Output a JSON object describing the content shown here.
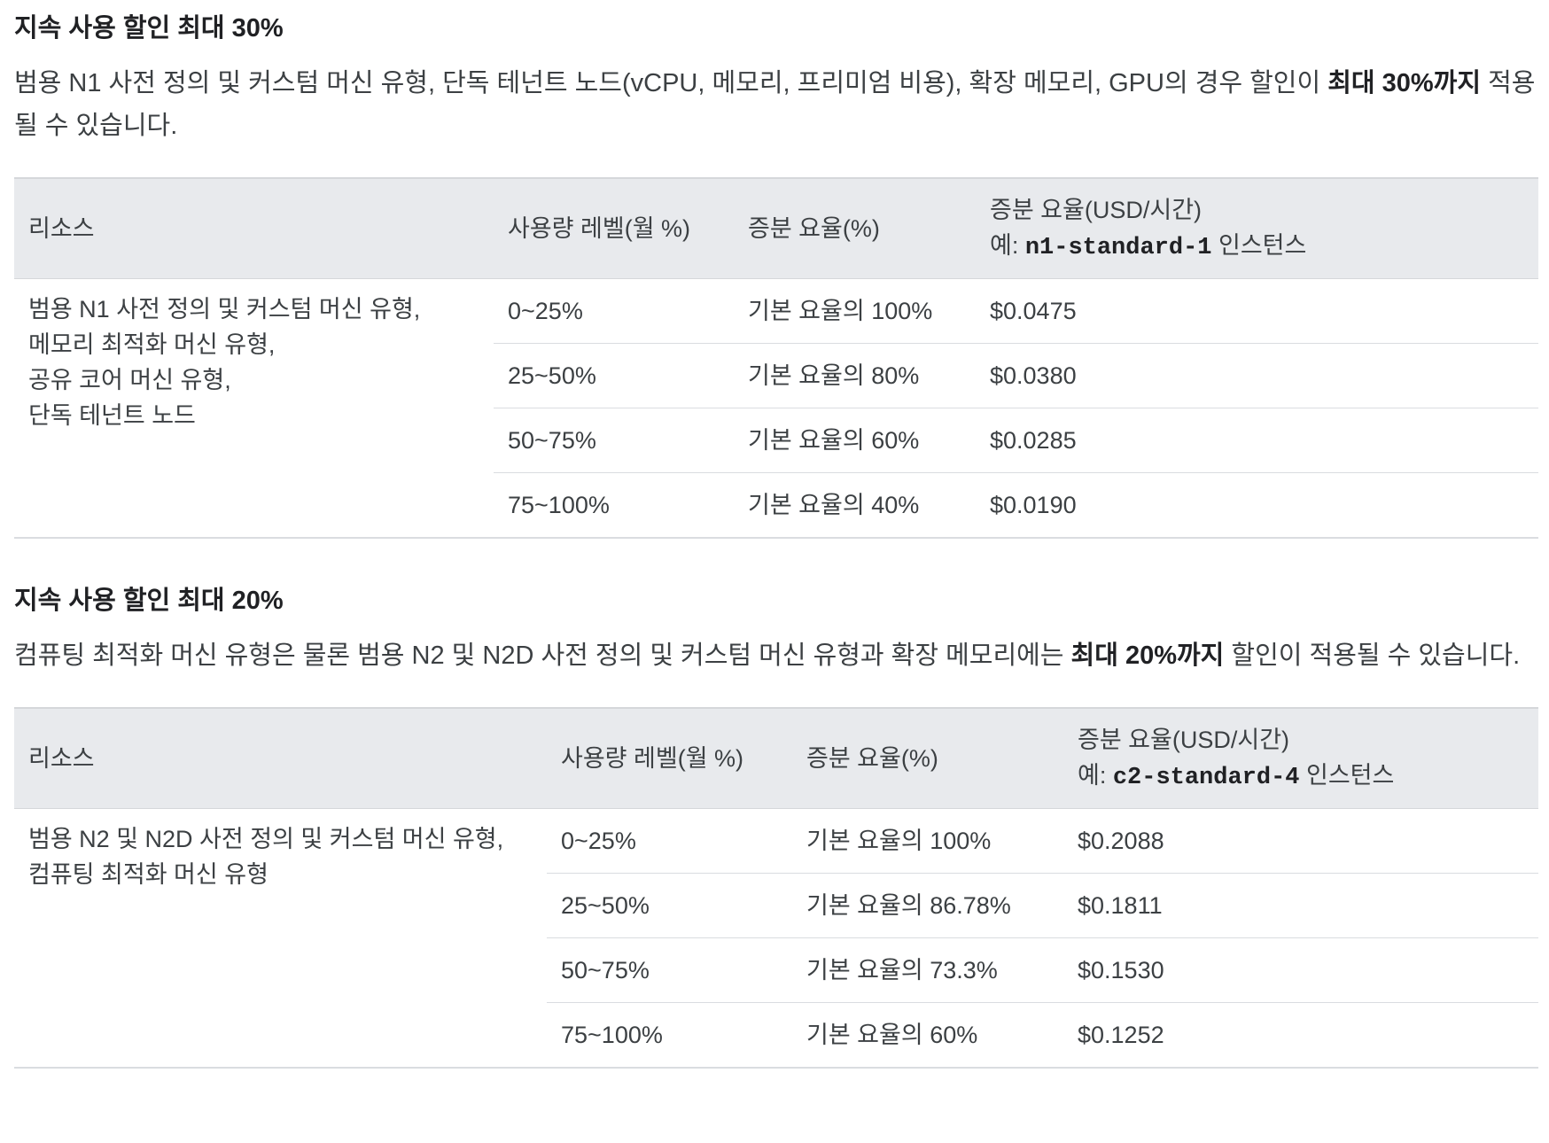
{
  "sections": [
    {
      "title": "지속 사용 할인 최대 30%",
      "desc_pre": "범용 N1 사전 정의 및 커스텀 머신 유형, 단독 테넌트 노드(vCPU, 메모리, 프리미엄 비용), 확장 메모리, GPU의 경우 할인이 ",
      "desc_bold": "최대 30%까지",
      "desc_post": " 적용될 수 있습니다.",
      "headers": {
        "resource": "리소스",
        "usage": "사용량 레벨(월 %)",
        "rate": "증분 요율(%)",
        "price_line1": "증분 요율(USD/시간)",
        "price_prefix": "예: ",
        "price_code": "n1-standard-1",
        "price_suffix": " 인스턴스"
      },
      "resource_lines": [
        "범용 N1 사전 정의 및 커스텀 머신 유형,",
        "메모리 최적화 머신 유형,",
        "공유 코어 머신 유형,",
        "단독 테넌트 노드"
      ],
      "rows": [
        {
          "usage": "0~25%",
          "rate": "기본 요율의 100%",
          "price": "$0.0475"
        },
        {
          "usage": "25~50%",
          "rate": "기본 요율의 80%",
          "price": "$0.0380"
        },
        {
          "usage": "50~75%",
          "rate": "기본 요율의 60%",
          "price": "$0.0285"
        },
        {
          "usage": "75~100%",
          "rate": "기본 요율의 40%",
          "price": "$0.0190"
        }
      ]
    },
    {
      "title": "지속 사용 할인 최대 20%",
      "desc_pre": "컴퓨팅 최적화 머신 유형은 물론 범용 N2 및 N2D 사전 정의 및 커스텀 머신 유형과 확장 메모리에는 ",
      "desc_bold": "최대 20%까지",
      "desc_post": " 할인이 적용될 수 있습니다.",
      "headers": {
        "resource": "리소스",
        "usage": "사용량 레벨(월 %)",
        "rate": "증분 요율(%)",
        "price_line1": "증분 요율(USD/시간)",
        "price_prefix": "예: ",
        "price_code": "c2-standard-4",
        "price_suffix": " 인스턴스"
      },
      "resource_lines": [
        "범용 N2 및 N2D 사전 정의 및 커스텀 머신 유형,",
        "컴퓨팅 최적화 머신 유형"
      ],
      "rows": [
        {
          "usage": "0~25%",
          "rate": "기본 요율의 100%",
          "price": "$0.2088"
        },
        {
          "usage": "25~50%",
          "rate": "기본 요율의 86.78%",
          "price": "$0.1811"
        },
        {
          "usage": "50~75%",
          "rate": "기본 요율의 73.3%",
          "price": "$0.1530"
        },
        {
          "usage": "75~100%",
          "rate": "기본 요율의 60%",
          "price": "$0.1252"
        }
      ]
    }
  ]
}
